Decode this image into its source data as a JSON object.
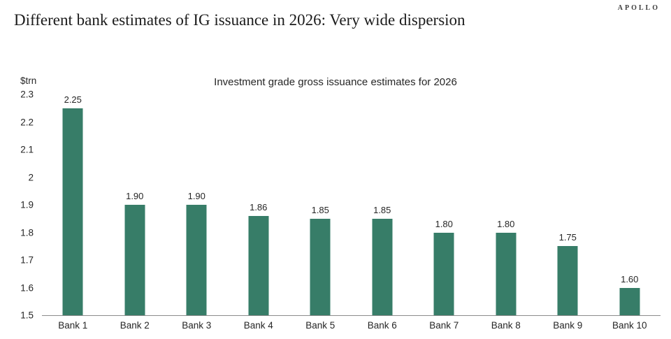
{
  "page": {
    "brand": "APOLLO",
    "title": "Different bank estimates of IG issuance in 2026: Very wide dispersion"
  },
  "chart_data": {
    "type": "bar",
    "title": "Investment grade gross issuance estimates for 2026",
    "unit_label": "$trn",
    "categories": [
      "Bank 1",
      "Bank 2",
      "Bank 3",
      "Bank 4",
      "Bank 5",
      "Bank 6",
      "Bank 7",
      "Bank 8",
      "Bank 9",
      "Bank 10"
    ],
    "values": [
      2.25,
      1.9,
      1.9,
      1.86,
      1.85,
      1.85,
      1.8,
      1.8,
      1.75,
      1.6
    ],
    "value_labels": [
      "2.25",
      "1.90",
      "1.90",
      "1.86",
      "1.85",
      "1.85",
      "1.80",
      "1.80",
      "1.75",
      "1.60"
    ],
    "ylabel": "$trn",
    "xlabel": "",
    "ylim": [
      1.5,
      2.3
    ],
    "ytick_labels": [
      "2.3",
      "2.2",
      "2.1",
      "2",
      "1.9",
      "1.8",
      "1.7",
      "1.6",
      "1.5"
    ],
    "bar_color": "#377D68",
    "axis_color": "#8C8C8C",
    "grid": false,
    "legend": false
  }
}
